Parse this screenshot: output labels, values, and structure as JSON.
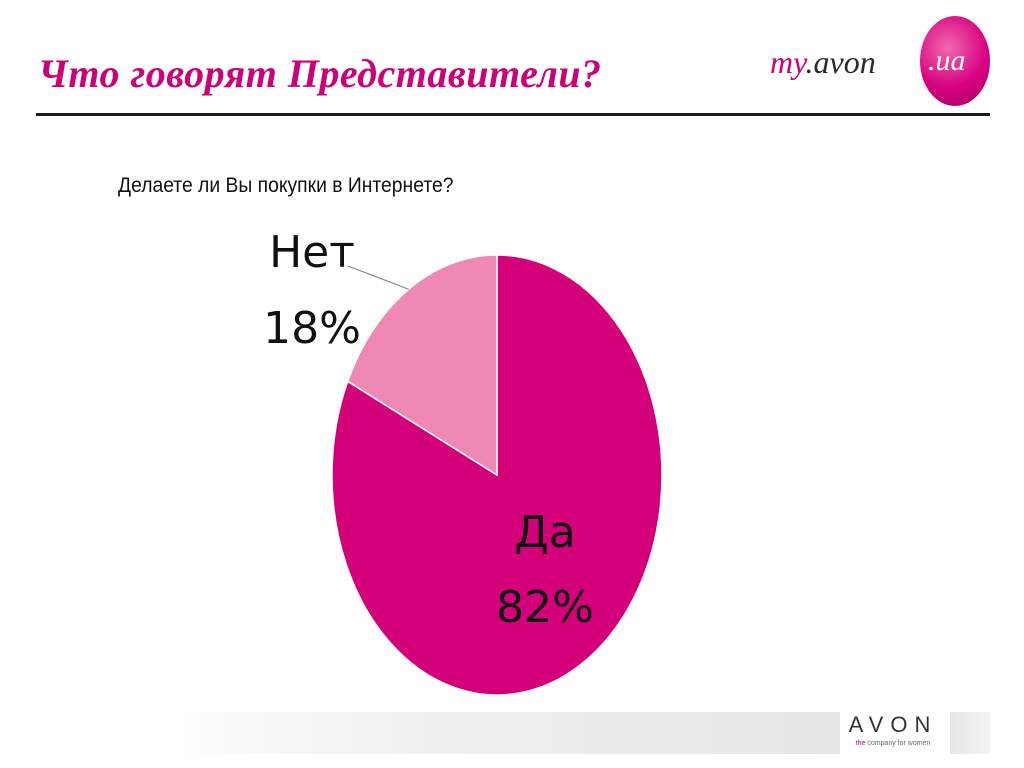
{
  "slide": {
    "title": "Что говорят Представители?"
  },
  "logo": {
    "prefix": "my",
    "brand": ".avon",
    "suffix": ".ua"
  },
  "footer": {
    "brand": "AVON",
    "tagline_the": "the",
    "tagline_rest": " company for women"
  },
  "colors": {
    "accent": "#cc0077",
    "slice_yes": "#d4007a",
    "slice_no": "#f088b4"
  },
  "chart_data": {
    "type": "pie",
    "title": "Делаете ли Вы покупки в Интернете?",
    "slices": [
      {
        "label": "Да",
        "value": 82,
        "value_label": "82%",
        "color": "#d4007a"
      },
      {
        "label": "Нет",
        "value": 18,
        "value_label": "18%",
        "color": "#f088b4"
      }
    ]
  }
}
